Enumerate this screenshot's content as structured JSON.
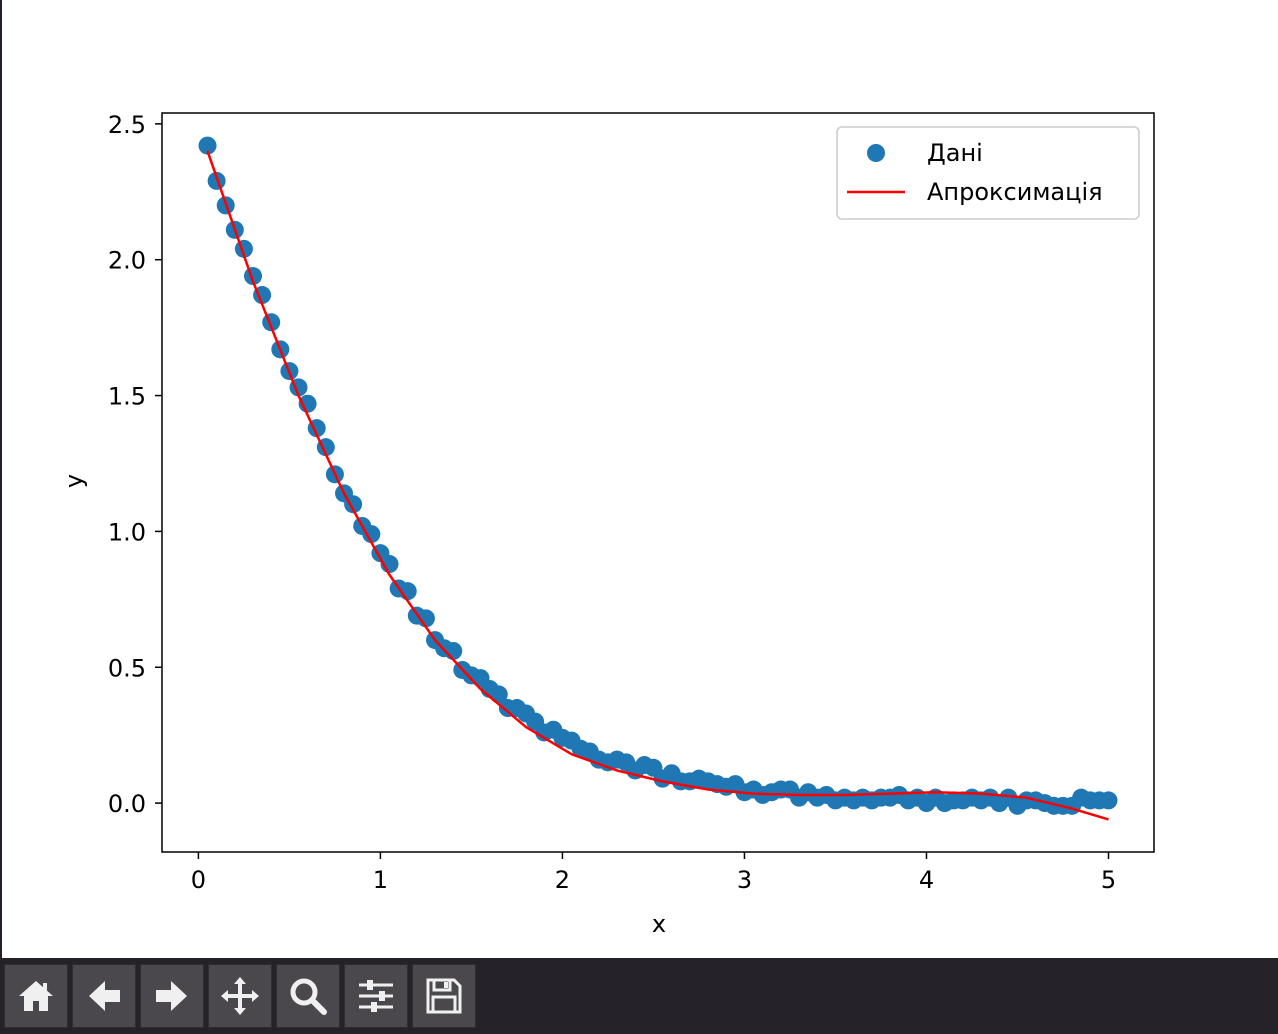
{
  "chart_data": {
    "type": "scatter",
    "xlabel": "x",
    "ylabel": "y",
    "xlim": [
      -0.2,
      5.25
    ],
    "ylim": [
      -0.18,
      2.54
    ],
    "xticks": [
      "0",
      "1",
      "2",
      "3",
      "4",
      "5"
    ],
    "yticks": [
      "0.0",
      "0.5",
      "1.0",
      "1.5",
      "2.0",
      "2.5"
    ],
    "legend_position": "top-right",
    "series": [
      {
        "name": "Дані",
        "kind": "scatter",
        "color": "#1f77b4",
        "x": [
          0.05,
          0.1,
          0.15,
          0.2,
          0.25,
          0.3,
          0.35,
          0.4,
          0.45,
          0.5,
          0.55,
          0.6,
          0.65,
          0.7,
          0.75,
          0.8,
          0.85,
          0.9,
          0.95,
          1.0,
          1.05,
          1.1,
          1.15,
          1.2,
          1.25,
          1.3,
          1.35,
          1.4,
          1.45,
          1.5,
          1.55,
          1.6,
          1.65,
          1.7,
          1.75,
          1.8,
          1.85,
          1.9,
          1.95,
          2.0,
          2.05,
          2.1,
          2.15,
          2.2,
          2.25,
          2.3,
          2.35,
          2.4,
          2.45,
          2.5,
          2.55,
          2.6,
          2.65,
          2.7,
          2.75,
          2.8,
          2.85,
          2.9,
          2.95,
          3.0,
          3.05,
          3.1,
          3.15,
          3.2,
          3.25,
          3.3,
          3.35,
          3.4,
          3.45,
          3.5,
          3.55,
          3.6,
          3.65,
          3.7,
          3.75,
          3.8,
          3.85,
          3.9,
          3.95,
          4.0,
          4.05,
          4.1,
          4.15,
          4.2,
          4.25,
          4.3,
          4.35,
          4.4,
          4.45,
          4.5,
          4.55,
          4.6,
          4.65,
          4.7,
          4.75,
          4.8,
          4.85,
          4.9,
          4.95,
          5.0
        ],
        "y": [
          2.42,
          2.29,
          2.2,
          2.11,
          2.04,
          1.94,
          1.87,
          1.77,
          1.67,
          1.59,
          1.53,
          1.47,
          1.38,
          1.31,
          1.21,
          1.14,
          1.1,
          1.02,
          0.99,
          0.92,
          0.88,
          0.79,
          0.78,
          0.69,
          0.68,
          0.6,
          0.57,
          0.56,
          0.49,
          0.47,
          0.46,
          0.42,
          0.4,
          0.35,
          0.35,
          0.33,
          0.3,
          0.26,
          0.27,
          0.24,
          0.23,
          0.2,
          0.19,
          0.16,
          0.15,
          0.16,
          0.15,
          0.12,
          0.14,
          0.13,
          0.09,
          0.11,
          0.08,
          0.08,
          0.09,
          0.08,
          0.07,
          0.06,
          0.07,
          0.04,
          0.05,
          0.03,
          0.04,
          0.05,
          0.05,
          0.02,
          0.04,
          0.02,
          0.03,
          0.01,
          0.02,
          0.01,
          0.02,
          0.01,
          0.02,
          0.02,
          0.03,
          0.01,
          0.02,
          0.0,
          0.02,
          0.0,
          0.01,
          0.01,
          0.02,
          0.01,
          0.02,
          0.0,
          0.02,
          -0.01,
          0.01,
          0.01,
          0.0,
          -0.01,
          -0.01,
          -0.01,
          0.02,
          0.01,
          0.01,
          0.01
        ]
      },
      {
        "name": "Апроксимація",
        "kind": "line",
        "color": "#ff0000",
        "x": [
          0.05,
          0.3,
          0.55,
          0.8,
          1.05,
          1.3,
          1.55,
          1.8,
          2.05,
          2.3,
          2.55,
          2.8,
          3.05,
          3.3,
          3.55,
          3.8,
          4.05,
          4.3,
          4.55,
          4.8,
          5.0
        ],
        "y": [
          2.4,
          1.92,
          1.5,
          1.14,
          0.84,
          0.6,
          0.42,
          0.28,
          0.18,
          0.12,
          0.08,
          0.05,
          0.035,
          0.03,
          0.03,
          0.035,
          0.04,
          0.035,
          0.02,
          -0.02,
          -0.06
        ]
      }
    ]
  },
  "toolbar": {
    "buttons": [
      "home-icon",
      "back-arrow-icon",
      "forward-arrow-icon",
      "pan-icon",
      "zoom-icon",
      "configure-subplots-icon",
      "save-icon"
    ]
  }
}
